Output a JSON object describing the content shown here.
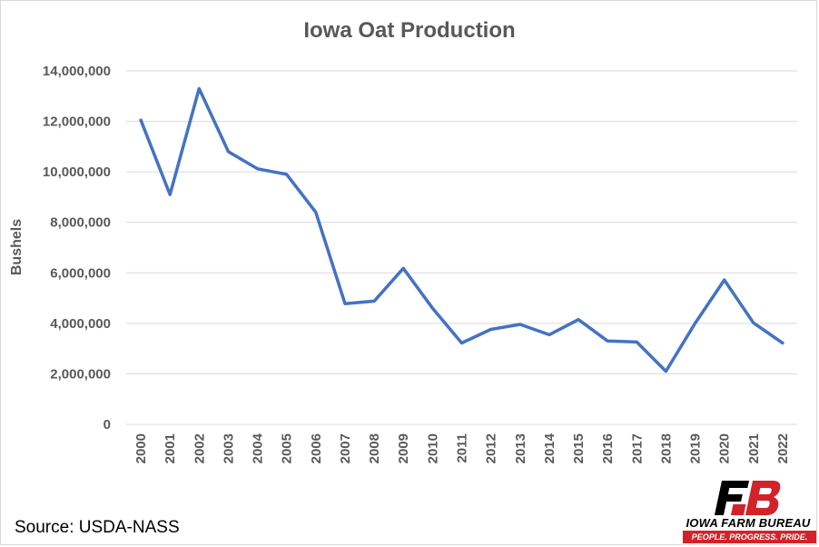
{
  "chart_data": {
    "type": "line",
    "title": "Iowa Oat Production",
    "xlabel": "",
    "ylabel": "Bushels",
    "ylim": [
      0,
      14000000
    ],
    "yticks": [
      0,
      2000000,
      4000000,
      6000000,
      8000000,
      10000000,
      12000000,
      14000000
    ],
    "ytick_labels": [
      "0",
      "2,000,000",
      "4,000,000",
      "6,000,000",
      "8,000,000",
      "10,000,000",
      "12,000,000",
      "14,000,000"
    ],
    "grid": true,
    "legend": "none",
    "categories": [
      "2000",
      "2001",
      "2002",
      "2003",
      "2004",
      "2005",
      "2006",
      "2007",
      "2008",
      "2009",
      "2010",
      "2011",
      "2012",
      "2013",
      "2014",
      "2015",
      "2016",
      "2017",
      "2018",
      "2019",
      "2020",
      "2021",
      "2022"
    ],
    "series": [
      {
        "color": "#4472c4",
        "values": [
          12050000,
          9100000,
          13300000,
          10800000,
          10120000,
          9900000,
          8400000,
          4780000,
          4880000,
          6180000,
          4600000,
          3220000,
          3760000,
          3960000,
          3550000,
          4150000,
          3300000,
          3260000,
          2100000,
          4000000,
          5720000,
          4020000,
          3220000
        ]
      }
    ]
  },
  "source_text": "Source: USDA-NASS",
  "logo": {
    "name": "IOWA FARM BUREAU",
    "tagline": "PEOPLE. PROGRESS. PRIDE.",
    "brand_color": "#d2232a"
  }
}
